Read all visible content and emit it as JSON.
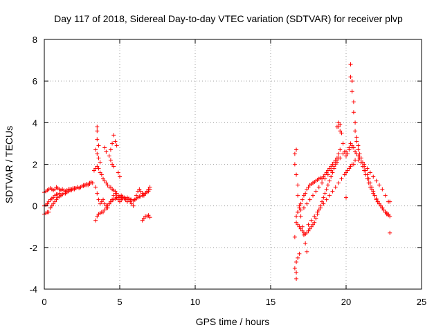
{
  "chart_data": {
    "type": "scatter",
    "title": "Day 117 of 2018, Sidereal Day-to-day VTEC variation (SDTVAR) for receiver plvp",
    "xlabel": "GPS time / hours",
    "ylabel": "SDTVAR / TECUs",
    "xlim": [
      0,
      25
    ],
    "ylim": [
      -4,
      8
    ],
    "xticks": [
      "0",
      "5",
      "10",
      "15",
      "20",
      "25"
    ],
    "yticks": [
      "-4",
      "-2",
      "0",
      "2",
      "4",
      "6",
      "8"
    ],
    "grid": true,
    "marker": "+",
    "color": "#ff0000",
    "series": [
      {
        "name": "SDTVAR",
        "x": [
          0.0,
          0.1,
          0.2,
          0.3,
          0.4,
          0.5,
          0.6,
          0.7,
          0.8,
          0.9,
          1.0,
          1.1,
          1.2,
          1.3,
          1.4,
          1.5,
          1.6,
          1.7,
          1.8,
          1.9,
          2.0,
          2.1,
          2.2,
          2.3,
          2.4,
          2.5,
          2.6,
          2.7,
          2.8,
          2.9,
          3.0,
          3.1,
          3.2,
          0.0,
          0.1,
          0.2,
          0.3,
          0.4,
          0.5,
          0.6,
          0.7,
          0.8,
          0.9,
          1.0,
          1.1,
          1.2,
          1.3,
          1.4,
          1.5,
          1.6,
          1.7,
          1.8,
          1.9,
          2.0,
          2.2,
          2.4,
          2.6,
          2.8,
          3.0,
          0.0,
          0.1,
          0.2,
          0.3,
          0.4,
          0.5,
          0.6,
          0.7,
          0.8,
          0.9,
          1.0,
          3.3,
          3.4,
          3.5,
          3.6,
          3.7,
          3.8,
          3.9,
          4.0,
          4.1,
          4.2,
          4.3,
          4.4,
          4.5,
          4.6,
          4.7,
          4.8,
          4.9,
          5.0,
          5.1,
          5.2,
          3.4,
          3.5,
          3.6,
          3.7,
          3.8,
          3.9,
          4.0,
          4.1,
          4.2,
          4.3,
          4.4,
          4.5,
          4.6,
          4.7,
          4.8,
          4.9,
          5.0,
          5.1,
          5.2,
          5.3,
          5.4,
          5.5,
          5.6,
          5.7,
          5.8,
          5.9,
          6.0,
          6.1,
          6.2,
          6.3,
          6.4,
          6.5,
          6.6,
          6.7,
          6.8,
          6.9,
          7.0,
          3.4,
          3.5,
          3.6,
          3.7,
          3.8,
          3.9,
          4.0,
          4.1,
          4.2,
          4.3,
          4.4,
          4.5,
          4.6,
          4.7,
          4.8,
          4.9,
          5.0,
          5.1,
          5.2,
          5.3,
          5.4,
          5.5,
          5.6,
          5.7,
          5.8,
          5.9,
          6.0,
          6.1,
          6.2,
          6.3,
          6.4,
          6.5,
          6.6,
          6.7,
          6.8,
          6.9,
          7.0,
          3.5,
          3.5,
          3.5,
          3.6,
          4.0,
          4.1,
          4.3,
          4.4,
          4.5,
          4.6,
          4.7,
          4.8,
          4.4,
          4.5,
          4.6,
          3.4,
          3.5,
          3.6,
          3.7,
          4.9,
          5.0,
          6.5,
          6.6,
          6.7,
          6.8,
          6.9,
          7.0,
          16.6,
          16.6,
          16.7,
          16.7,
          16.8,
          16.8,
          16.9,
          17.0,
          17.1,
          17.2,
          17.3,
          17.4,
          16.6,
          16.7,
          16.7,
          16.6,
          16.7,
          16.8,
          16.9,
          16.7,
          16.8,
          16.9,
          17.0,
          17.1,
          17.2,
          17.3,
          17.4,
          17.5,
          17.6,
          17.7,
          17.8,
          17.9,
          18.0,
          18.1,
          18.2,
          18.3,
          18.4,
          18.5,
          18.6,
          18.7,
          18.8,
          18.9,
          19.0,
          19.1,
          19.2,
          19.3,
          19.4,
          19.5,
          19.6,
          16.7,
          16.8,
          16.9,
          17.0,
          17.1,
          17.2,
          17.3,
          17.4,
          17.5,
          17.6,
          17.7,
          17.8,
          17.9,
          18.0,
          18.1,
          18.2,
          18.3,
          18.4,
          18.5,
          18.6,
          18.7,
          18.8,
          18.9,
          19.0,
          19.1,
          19.2,
          19.3,
          19.4,
          19.5,
          16.8,
          17.0,
          17.2,
          17.4,
          17.6,
          17.8,
          18.0,
          18.2,
          18.4,
          18.6,
          18.8,
          19.0,
          19.2,
          19.4,
          19.6,
          19.8,
          20.0,
          20.2,
          20.4,
          17.5,
          17.7,
          17.9,
          18.1,
          18.3,
          18.5,
          18.7,
          18.9,
          19.1,
          19.3,
          19.5,
          19.7,
          19.9,
          20.1,
          20.3,
          20.5,
          19.5,
          19.6,
          19.7,
          19.8,
          19.9,
          20.0,
          20.1,
          20.2,
          20.3,
          20.4,
          20.5,
          20.6,
          20.7,
          20.8,
          20.9,
          21.0,
          21.1,
          21.2,
          21.3,
          21.4,
          21.5,
          21.6,
          21.7,
          21.8,
          21.9,
          22.0,
          22.1,
          22.2,
          22.3,
          22.4,
          22.5,
          22.6,
          22.7,
          22.8,
          22.9,
          20.0,
          20.2,
          20.4,
          20.6,
          20.8,
          21.0,
          21.2,
          21.4,
          21.6,
          21.8,
          22.0,
          22.2,
          22.4,
          22.6,
          22.8,
          20.3,
          20.3,
          20.4,
          20.4,
          20.5,
          20.5,
          20.6,
          20.6,
          20.7,
          20.7,
          20.8,
          20.8,
          20.9,
          21.0,
          21.1,
          21.2,
          21.3,
          21.4,
          21.5,
          21.6,
          21.7,
          21.8,
          21.9,
          22.0,
          22.1,
          22.2,
          22.3,
          22.4,
          22.5,
          22.6,
          22.7,
          22.8,
          22.9,
          19.6,
          19.4,
          19.5,
          22.9,
          20.0
        ],
        "y": [
          0.65,
          0.7,
          0.75,
          0.8,
          0.85,
          0.8,
          0.75,
          0.8,
          0.9,
          0.85,
          0.8,
          0.75,
          0.8,
          0.75,
          0.7,
          0.75,
          0.8,
          0.8,
          0.8,
          0.85,
          0.8,
          0.85,
          0.9,
          0.85,
          0.9,
          0.95,
          1.0,
          1.0,
          1.05,
          1.0,
          1.1,
          1.15,
          1.1,
          -0.4,
          -0.35,
          -0.3,
          -0.3,
          -0.1,
          0.0,
          0.1,
          0.2,
          0.3,
          0.4,
          0.45,
          0.5,
          0.55,
          0.6,
          0.6,
          0.65,
          0.7,
          0.75,
          0.75,
          0.8,
          0.85,
          0.9,
          0.9,
          0.95,
          1.0,
          1.05,
          0.0,
          0.05,
          0.1,
          0.2,
          0.3,
          0.35,
          0.4,
          0.5,
          0.55,
          0.55,
          0.6,
          1.7,
          1.8,
          1.9,
          1.8,
          1.6,
          1.5,
          1.3,
          1.2,
          1.1,
          1.0,
          0.9,
          0.9,
          0.8,
          0.75,
          0.7,
          0.6,
          0.5,
          0.4,
          0.4,
          0.35,
          0.9,
          0.6,
          0.3,
          0.1,
          0.2,
          0.3,
          0.1,
          0.0,
          -0.1,
          0.1,
          0.2,
          0.3,
          0.5,
          0.6,
          0.4,
          0.3,
          0.2,
          0.3,
          0.4,
          0.35,
          0.3,
          0.2,
          0.3,
          0.2,
          0.1,
          0.0,
          0.3,
          0.5,
          0.7,
          0.8,
          0.7,
          0.6,
          0.5,
          0.6,
          0.7,
          0.8,
          0.9,
          -0.7,
          -0.5,
          -0.4,
          -0.35,
          -0.3,
          -0.3,
          -0.2,
          -0.1,
          0.0,
          0.1,
          0.2,
          0.3,
          0.3,
          0.35,
          0.4,
          0.4,
          0.45,
          0.5,
          0.45,
          0.4,
          0.35,
          0.4,
          0.35,
          0.3,
          0.3,
          0.25,
          0.3,
          0.35,
          0.4,
          0.45,
          0.45,
          0.5,
          0.55,
          0.6,
          0.65,
          0.7,
          0.8,
          3.8,
          3.6,
          3.2,
          2.9,
          2.8,
          2.6,
          2.4,
          2.7,
          3.0,
          3.4,
          3.1,
          2.9,
          2.2,
          2.0,
          1.9,
          2.7,
          2.5,
          2.3,
          2.1,
          1.6,
          1.4,
          -0.7,
          -0.6,
          -0.5,
          -0.5,
          -0.45,
          -0.55,
          2.5,
          2.0,
          2.7,
          1.5,
          1.0,
          0.5,
          0.0,
          -0.5,
          -1.0,
          -1.4,
          -1.8,
          -2.2,
          -3.0,
          -3.5,
          -3.2,
          -1.5,
          -2.7,
          -2.5,
          -2.3,
          -0.5,
          -0.3,
          -0.1,
          0.1,
          0.3,
          0.5,
          0.6,
          0.8,
          0.9,
          1.0,
          1.05,
          1.1,
          1.15,
          1.2,
          1.25,
          1.3,
          1.35,
          1.3,
          1.4,
          1.5,
          1.6,
          1.7,
          1.8,
          1.9,
          2.0,
          2.1,
          2.2,
          2.3,
          2.5,
          2.7,
          -0.8,
          -0.9,
          -1.0,
          -1.1,
          -1.2,
          -1.3,
          -1.35,
          -1.3,
          -1.2,
          -1.1,
          -1.0,
          -0.9,
          -0.8,
          -0.6,
          -0.4,
          -0.2,
          0.0,
          0.2,
          0.4,
          0.6,
          0.8,
          1.0,
          1.2,
          1.4,
          1.6,
          1.8,
          2.0,
          2.2,
          2.3,
          -0.3,
          -0.2,
          -0.1,
          0.1,
          0.3,
          0.5,
          0.7,
          0.9,
          1.1,
          1.3,
          1.5,
          1.7,
          1.9,
          2.1,
          2.3,
          2.5,
          2.6,
          2.7,
          2.8,
          -0.9,
          -0.7,
          -0.5,
          -0.3,
          -0.1,
          0.1,
          0.3,
          0.5,
          0.7,
          0.9,
          1.1,
          1.3,
          1.5,
          1.7,
          1.9,
          2.0,
          3.8,
          3.9,
          3.5,
          3.0,
          2.6,
          2.4,
          2.5,
          2.8,
          3.0,
          2.9,
          2.8,
          2.6,
          2.5,
          2.4,
          2.3,
          2.1,
          1.9,
          1.7,
          1.5,
          1.3,
          1.1,
          0.9,
          0.8,
          0.6,
          0.5,
          0.3,
          0.2,
          0.1,
          0.0,
          -0.1,
          -0.2,
          -0.3,
          -0.4,
          -0.45,
          -0.5,
          1.6,
          1.8,
          2.0,
          2.2,
          2.2,
          2.1,
          2.0,
          1.8,
          1.6,
          1.4,
          1.2,
          1.0,
          0.8,
          0.5,
          0.2,
          6.8,
          6.2,
          6.0,
          5.5,
          5.0,
          4.5,
          4.0,
          3.6,
          3.3,
          3.1,
          2.9,
          2.7,
          2.5,
          2.3,
          2.1,
          1.9,
          1.7,
          1.5,
          1.3,
          1.1,
          0.9,
          0.7,
          0.5,
          0.35,
          0.2,
          0.1,
          0.0,
          -0.1,
          -0.2,
          -0.3,
          -0.35,
          -0.4,
          0.2,
          3.6,
          3.8,
          4.0,
          -1.3,
          0.4
        ]
      }
    ]
  }
}
